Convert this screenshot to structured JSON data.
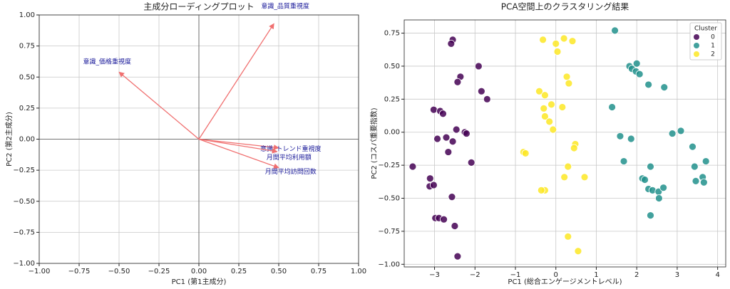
{
  "chart_data": [
    {
      "type": "quiver",
      "title": "主成分ローディングプロット",
      "x_label": "PC1 (第1主成分)",
      "y_label": "PC2 (第2主成分)",
      "xlim": [
        -1,
        1
      ],
      "ylim": [
        -1,
        1
      ],
      "xticks": [
        {
          "value": -1,
          "label": "−1.00"
        },
        {
          "value": -0.75,
          "label": "−0.75"
        },
        {
          "value": -0.5,
          "label": "−0.50"
        },
        {
          "value": -0.25,
          "label": "−0.25"
        },
        {
          "value": 0,
          "label": "0.00"
        },
        0.25,
        {
          "value": 0.5,
          "label": "0.50"
        },
        0.75,
        {
          "value": 1,
          "label": "1.00"
        }
      ],
      "yticks": [
        {
          "value": -1,
          "label": "−1.00"
        },
        {
          "value": -0.75,
          "label": "−0.75"
        },
        {
          "value": -0.5,
          "label": "−0.50"
        },
        {
          "value": -0.25,
          "label": "−0.25"
        },
        {
          "value": 0,
          "label": "0.00"
        },
        0.25,
        {
          "value": 0.5,
          "label": "0.50"
        },
        0.75,
        {
          "value": 1,
          "label": "1.00"
        }
      ],
      "grid": true,
      "color": "#f07070",
      "label_color": "#1a1a9a",
      "series": [
        {
          "name": "意識_品質重視度",
          "x": 0.47,
          "y": 0.93
        },
        {
          "name": "意識_価格重視度",
          "x": -0.5,
          "y": 0.54
        },
        {
          "name": "意識_トレンド重視度",
          "x": 0.5,
          "y": -0.07
        },
        {
          "name": "月間平均利用額",
          "x": 0.49,
          "y": -0.1
        },
        {
          "name": "月間平均訪問回数",
          "x": 0.5,
          "y": -0.23
        }
      ]
    },
    {
      "type": "scatter",
      "title": "PCA空間上のクラスタリング結果",
      "x_label": "PC1 (総合エンゲージメントレベル)",
      "y_label": "PC2 (コスパ重要指数)",
      "xlim": [
        -3.75,
        4.2
      ],
      "ylim": [
        -1.02,
        0.85
      ],
      "xticks": [
        {
          "value": -3,
          "label": "−3"
        },
        {
          "value": -2,
          "label": "−2"
        },
        {
          "value": -1,
          "label": "−1"
        },
        0,
        1,
        2,
        3,
        4
      ],
      "yticks": [
        {
          "value": -1,
          "label": "−1.00"
        },
        {
          "value": -0.75,
          "label": "−0.75"
        },
        {
          "value": -0.5,
          "label": "−0.50"
        },
        {
          "value": -0.25,
          "label": "−0.25"
        },
        {
          "value": 0,
          "label": "0.00"
        },
        0.25,
        {
          "value": 0.5,
          "label": "0.50"
        },
        0.75
      ],
      "grid": true,
      "legend_title": "Cluster",
      "legend": "upper right",
      "series": [
        {
          "name": "0",
          "color": "#440154",
          "x": [
            -2.55,
            -2.59,
            -2.36,
            -2.43,
            -1.91,
            -1.84,
            -1.7,
            -3.02,
            -2.86,
            -2.79,
            -2.46,
            -2.25,
            -2.21,
            -2.71,
            -2.93,
            -2.55,
            -2.66,
            -2.09,
            -3.54,
            -3.11,
            -3.12,
            -3.02,
            -2.57,
            -2.98,
            -2.89,
            -2.77,
            -2.5,
            -2.43
          ],
          "values": [
            0.7,
            0.67,
            0.42,
            0.38,
            0.5,
            0.31,
            0.25,
            0.17,
            0.16,
            0.14,
            0.02,
            0.0,
            -0.01,
            -0.04,
            -0.05,
            -0.07,
            -0.15,
            -0.23,
            -0.26,
            -0.35,
            -0.41,
            -0.4,
            -0.49,
            -0.65,
            -0.65,
            -0.66,
            -0.71,
            -0.94
          ]
        },
        {
          "name": "1",
          "color": "#21918c",
          "x": [
            1.46,
            1.82,
            1.88,
            2.0,
            1.98,
            2.07,
            2.29,
            2.68,
            1.39,
            1.59,
            1.86,
            1.68,
            2.88,
            3.09,
            3.38,
            3.43,
            3.71,
            2.34,
            2.14,
            2.2,
            3.46,
            3.63,
            3.66,
            2.29,
            2.39,
            2.54,
            2.66,
            2.55,
            2.34
          ],
          "values": [
            0.77,
            0.5,
            0.48,
            0.52,
            0.46,
            0.44,
            0.36,
            0.34,
            0.19,
            -0.03,
            -0.05,
            -0.22,
            -0.01,
            0.01,
            -0.11,
            -0.26,
            -0.22,
            -0.26,
            -0.35,
            -0.36,
            -0.37,
            -0.34,
            -0.38,
            -0.43,
            -0.44,
            -0.45,
            -0.42,
            -0.5,
            -0.63
          ]
        },
        {
          "name": "2",
          "color": "#fde725",
          "x": [
            -0.32,
            0.2,
            0.41,
            0.0,
            0.04,
            0.27,
            0.32,
            -0.41,
            -0.27,
            -0.11,
            -0.3,
            0.16,
            -0.27,
            -0.16,
            -0.07,
            0.48,
            0.45,
            -0.8,
            -0.75,
            0.3,
            0.21,
            0.71,
            -0.27,
            -0.36,
            0.3,
            0.55
          ],
          "values": [
            0.7,
            0.71,
            0.69,
            0.67,
            0.61,
            0.42,
            0.37,
            0.31,
            0.28,
            0.21,
            0.18,
            0.19,
            0.12,
            0.08,
            0.02,
            -0.09,
            -0.12,
            -0.15,
            -0.16,
            -0.26,
            -0.34,
            -0.34,
            -0.44,
            -0.44,
            -0.79,
            -0.9
          ]
        }
      ]
    }
  ]
}
